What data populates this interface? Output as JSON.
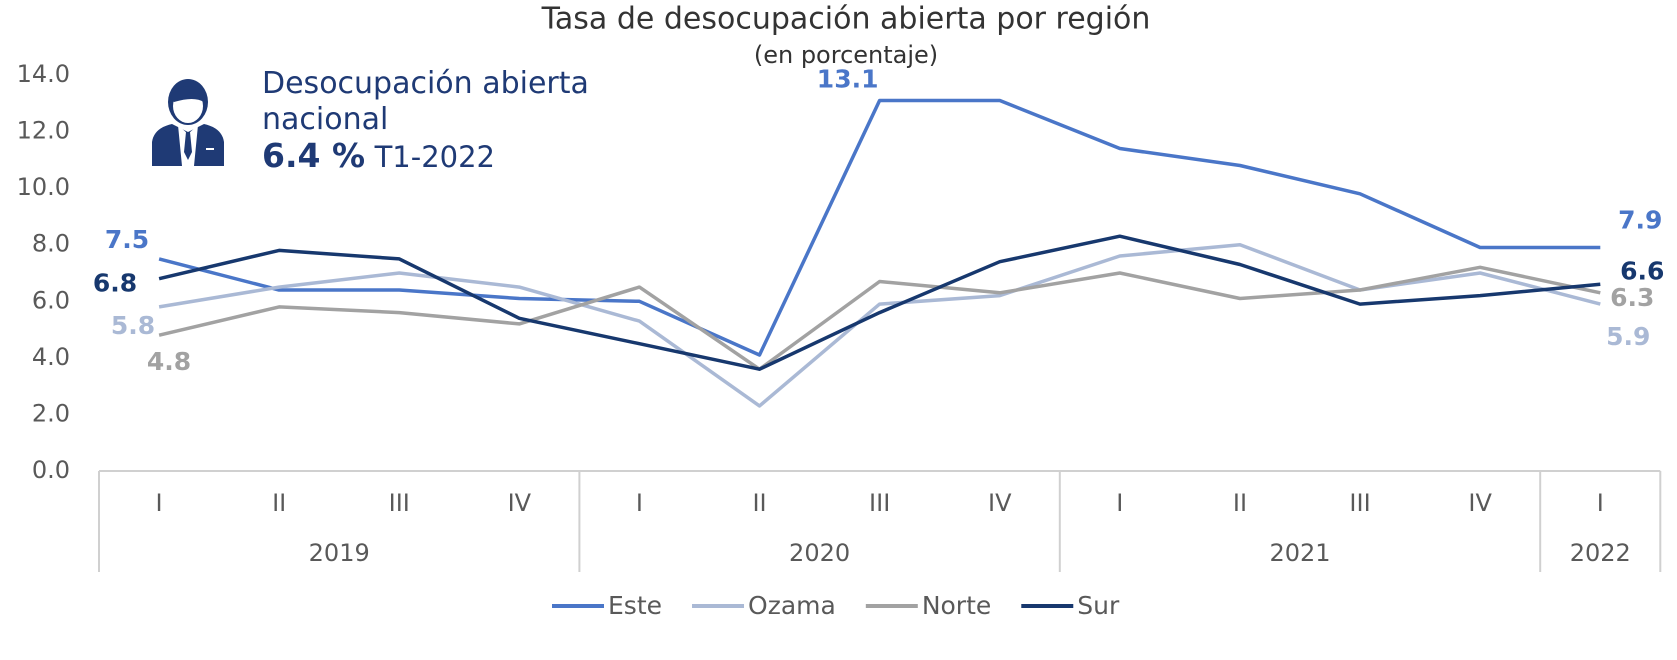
{
  "chart_data": {
    "type": "line",
    "title": "Tasa de desocupación abierta por región",
    "subtitle": "(en porcentaje)",
    "annotation": {
      "text": "Desocupación abierta nacional",
      "value": "6.4 %",
      "period": "T1-2022"
    },
    "categories": [
      "I",
      "II",
      "III",
      "IV",
      "I",
      "II",
      "III",
      "IV",
      "I",
      "II",
      "III",
      "IV",
      "I"
    ],
    "groups": [
      {
        "label": "2019",
        "span": 4
      },
      {
        "label": "2020",
        "span": 4
      },
      {
        "label": "2021",
        "span": 4
      },
      {
        "label": "2022",
        "span": 1
      }
    ],
    "ylim": [
      0,
      14
    ],
    "yticks": [
      {
        "value": 0,
        "label": "0.0"
      },
      {
        "value": 2,
        "label": "2.0"
      },
      {
        "value": 4,
        "label": "4.0"
      },
      {
        "value": 6,
        "label": "6.0"
      },
      {
        "value": 8,
        "label": "8.0"
      },
      {
        "value": 10,
        "label": "10.0"
      },
      {
        "value": 12,
        "label": "12.0"
      },
      {
        "value": 14,
        "label": "14.0"
      }
    ],
    "grid": false,
    "legend": "bottom",
    "series": [
      {
        "name": "Este",
        "color": "#4a76c8",
        "values": [
          7.5,
          6.4,
          6.4,
          6.1,
          6.0,
          4.1,
          13.1,
          13.1,
          11.4,
          10.8,
          9.8,
          7.9,
          7.9
        ],
        "value_labels": [
          "7.5",
          null,
          null,
          null,
          null,
          null,
          "13.1",
          null,
          null,
          null,
          null,
          null,
          "7.9"
        ]
      },
      {
        "name": "Ozama",
        "color": "#aab9d5",
        "values": [
          5.8,
          6.5,
          7.0,
          6.5,
          5.3,
          2.3,
          5.9,
          6.2,
          7.6,
          8.0,
          6.4,
          7.0,
          5.9
        ],
        "value_labels": [
          "5.8",
          null,
          null,
          null,
          null,
          null,
          null,
          null,
          null,
          null,
          null,
          null,
          "5.9"
        ]
      },
      {
        "name": "Norte",
        "color": "#a2a2a2",
        "values": [
          4.8,
          5.8,
          5.6,
          5.2,
          6.5,
          3.6,
          6.7,
          6.3,
          7.0,
          6.1,
          6.4,
          7.2,
          6.3
        ],
        "value_labels": [
          "4.8",
          null,
          null,
          null,
          null,
          null,
          null,
          null,
          null,
          null,
          null,
          null,
          "6.3"
        ]
      },
      {
        "name": "Sur",
        "color": "#17386e",
        "values": [
          6.8,
          7.8,
          7.5,
          5.4,
          4.5,
          3.6,
          5.6,
          7.4,
          8.3,
          7.3,
          5.9,
          6.2,
          6.6
        ],
        "value_labels": [
          "6.8",
          null,
          null,
          null,
          null,
          null,
          null,
          null,
          null,
          null,
          null,
          null,
          "6.6"
        ]
      }
    ]
  }
}
